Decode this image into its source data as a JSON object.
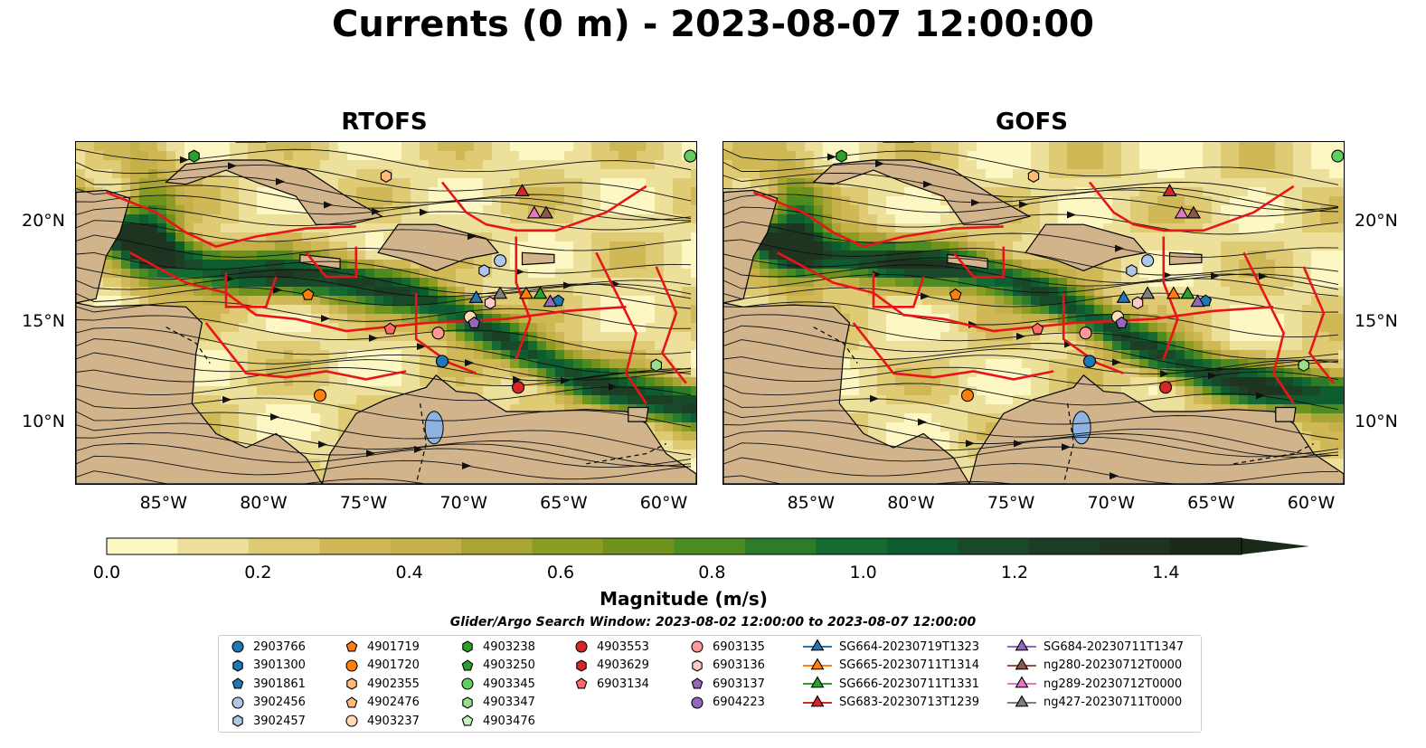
{
  "title": "Currents (0 m) - 2023-08-07 12:00:00",
  "chart_data": {
    "type": "heatmap",
    "panels": [
      "RTOFS",
      "GOFS"
    ],
    "lon_ticks": [
      "85°W",
      "80°W",
      "75°W",
      "70°W",
      "65°W",
      "60°W"
    ],
    "lat_ticks": [
      "20°N",
      "15°N",
      "10°N"
    ],
    "lon_range": [
      -89.5,
      -58.5
    ],
    "lat_range": [
      7.0,
      24.0
    ],
    "colorbar": {
      "label": "Magnitude (m/s)",
      "ticks": [
        "0.0",
        "0.2",
        "0.4",
        "0.6",
        "0.8",
        "1.0",
        "1.2",
        "1.4"
      ],
      "range": [
        0.0,
        1.5
      ],
      "levels": [
        0.0,
        0.1,
        0.2,
        0.3,
        0.4,
        0.5,
        0.6,
        0.7,
        0.8,
        0.9,
        1.0,
        1.1,
        1.2,
        1.3,
        1.4,
        1.5
      ],
      "colors": [
        "#fdf7c3",
        "#ede09a",
        "#dfcb73",
        "#d0b856",
        "#c5b04a",
        "#a8a436",
        "#8a9c22",
        "#6e921c",
        "#4c8a22",
        "#2c7c2a",
        "#156a32",
        "#0e5c30",
        "#184a2a",
        "#1c3e24",
        "#1e3320",
        "#1a2a1a"
      ],
      "extend": "max"
    }
  },
  "search_window": "Glider/Argo Search Window: 2023-08-02 12:00:00 to 2023-08-07 12:00:00",
  "legend": [
    {
      "label": "2903766",
      "shape": "circle",
      "color": "#1f77b4"
    },
    {
      "label": "3901300",
      "shape": "hexagon",
      "color": "#1f77b4"
    },
    {
      "label": "3901861",
      "shape": "pentagon",
      "color": "#1f77b4"
    },
    {
      "label": "3902456",
      "shape": "circle",
      "color": "#aec7e8"
    },
    {
      "label": "3902457",
      "shape": "hexagon",
      "color": "#aec7e8"
    },
    {
      "label": "4901719",
      "shape": "pentagon",
      "color": "#ff7f0e"
    },
    {
      "label": "4901720",
      "shape": "circle",
      "color": "#ff7f0e"
    },
    {
      "label": "4902355",
      "shape": "hexagon",
      "color": "#ffbb78"
    },
    {
      "label": "4902476",
      "shape": "pentagon",
      "color": "#ffbb78"
    },
    {
      "label": "4903237",
      "shape": "circle",
      "color": "#ffdab3"
    },
    {
      "label": "4903238",
      "shape": "hexagon",
      "color": "#2ca02c"
    },
    {
      "label": "4903250",
      "shape": "pentagon",
      "color": "#2ca02c"
    },
    {
      "label": "4903345",
      "shape": "circle",
      "color": "#5fd05f"
    },
    {
      "label": "4903347",
      "shape": "hexagon",
      "color": "#98df8a"
    },
    {
      "label": "4903476",
      "shape": "pentagon",
      "color": "#c7f5c0"
    },
    {
      "label": "4903553",
      "shape": "circle",
      "color": "#d62728"
    },
    {
      "label": "4903629",
      "shape": "hexagon",
      "color": "#d62728"
    },
    {
      "label": "6903134",
      "shape": "pentagon",
      "color": "#ff6b6b"
    },
    {
      "label": "6903135",
      "shape": "circle",
      "color": "#ff9896"
    },
    {
      "label": "6903136",
      "shape": "hexagon",
      "color": "#ffc9c9"
    },
    {
      "label": "6903137",
      "shape": "pentagon",
      "color": "#9467bd"
    },
    {
      "label": "6904223",
      "shape": "circle",
      "color": "#9467bd"
    },
    {
      "label": "SG664-20230719T1323",
      "shape": "triangle",
      "color": "#1f77b4"
    },
    {
      "label": "SG665-20230711T1314",
      "shape": "triangle",
      "color": "#ff7f0e"
    },
    {
      "label": "SG666-20230711T1331",
      "shape": "triangle",
      "color": "#2ca02c"
    },
    {
      "label": "SG683-20230713T1239",
      "shape": "triangle",
      "color": "#d62728"
    },
    {
      "label": "SG684-20230711T1347",
      "shape": "triangle",
      "color": "#9467bd"
    },
    {
      "label": "ng280-20230712T0000",
      "shape": "triangle",
      "color": "#8c564b"
    },
    {
      "label": "ng289-20230712T0000",
      "shape": "triangle",
      "color": "#e377c2"
    },
    {
      "label": "ng427-20230711T0000",
      "shape": "triangle",
      "color": "#7f7f7f"
    }
  ],
  "markers": [
    {
      "label": "2903766",
      "lon": -71.2,
      "lat": 13.1
    },
    {
      "label": "3901861",
      "lon": -65.4,
      "lat": 16.1
    },
    {
      "label": "3902456",
      "lon": -68.3,
      "lat": 18.1
    },
    {
      "label": "3902457",
      "lon": -69.1,
      "lat": 17.6
    },
    {
      "label": "4901719",
      "lon": -77.9,
      "lat": 16.4
    },
    {
      "label": "4901720",
      "lon": -77.3,
      "lat": 11.4
    },
    {
      "label": "4902355",
      "lon": -74.0,
      "lat": 22.3
    },
    {
      "label": "4903237",
      "lon": -69.8,
      "lat": 15.3
    },
    {
      "label": "4903238",
      "lon": -83.6,
      "lat": 23.3
    },
    {
      "label": "4903345",
      "lon": -58.8,
      "lat": 23.3
    },
    {
      "label": "4903347",
      "lon": -60.5,
      "lat": 12.9
    },
    {
      "label": "4903553",
      "lon": -67.4,
      "lat": 11.8
    },
    {
      "label": "6903134",
      "lon": -73.8,
      "lat": 14.7
    },
    {
      "label": "6903135",
      "lon": -71.4,
      "lat": 14.5
    },
    {
      "label": "6903136",
      "lon": -68.8,
      "lat": 16.0
    },
    {
      "label": "6903137",
      "lon": -69.6,
      "lat": 15.0
    },
    {
      "label": "SG664-20230719T1323",
      "lon": -69.5,
      "lat": 16.3
    },
    {
      "label": "SG665-20230711T1314",
      "lon": -67.0,
      "lat": 16.5
    },
    {
      "label": "SG666-20230711T1331",
      "lon": -66.3,
      "lat": 16.5
    },
    {
      "label": "SG683-20230713T1239",
      "lon": -67.2,
      "lat": 21.6
    },
    {
      "label": "SG684-20230711T1347",
      "lon": -65.8,
      "lat": 16.1
    },
    {
      "label": "ng280-20230712T0000",
      "lon": -66.0,
      "lat": 20.5
    },
    {
      "label": "ng289-20230712T0000",
      "lon": -66.6,
      "lat": 20.5
    },
    {
      "label": "ng427-20230711T0000",
      "lon": -68.3,
      "lat": 16.5
    }
  ]
}
